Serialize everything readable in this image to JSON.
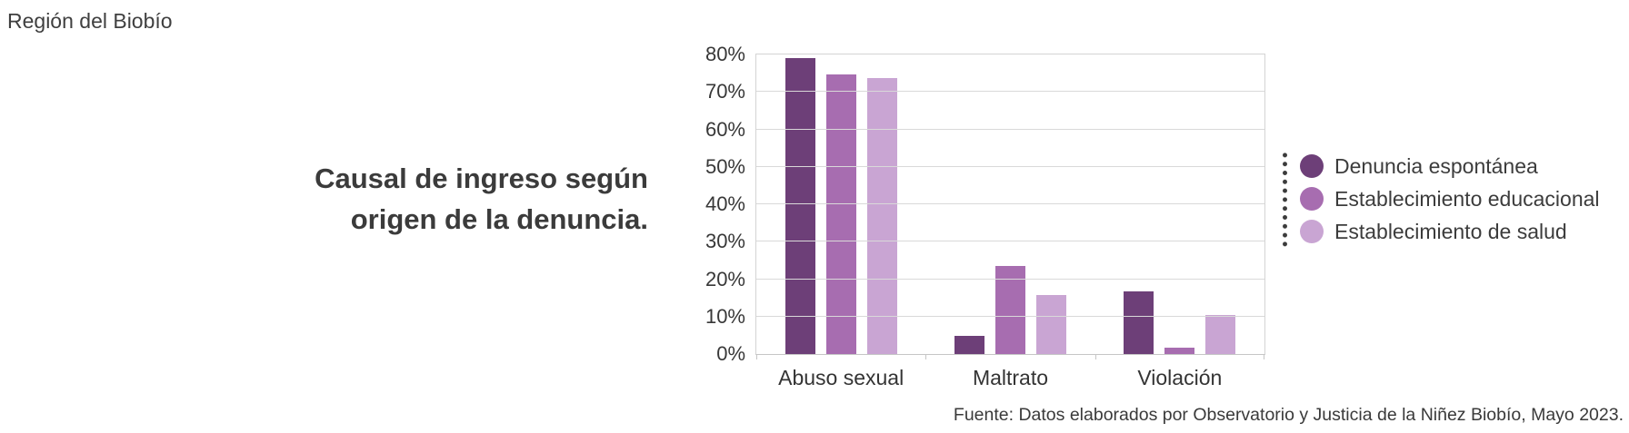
{
  "header": {
    "region": "Región del Biobío"
  },
  "title": {
    "line1": "Causal de ingreso según",
    "line2": "origen de la denuncia."
  },
  "footer": {
    "source": "Fuente: Datos elaborados por Observatorio y Justicia de la Niñez Biobío, Mayo 2023."
  },
  "colors": {
    "series_dark": "#6d3f78",
    "series_medium": "#a76db0",
    "series_light": "#c9a5d3",
    "gridline": "#d9d9d9",
    "text": "#3b3b3b"
  },
  "chart_data": {
    "type": "bar",
    "title": "Causal de ingreso según origen de la denuncia.",
    "xlabel": "",
    "ylabel": "",
    "unit": "%",
    "categories": [
      "Abuso sexual",
      "Maltrato",
      "Violación"
    ],
    "series": [
      {
        "name": "Denuncia espontánea",
        "color": "#6d3f78",
        "values": [
          79,
          4.8,
          16.8
        ]
      },
      {
        "name": "Establecimiento educacional",
        "color": "#a76db0",
        "values": [
          74.7,
          23.5,
          1.8
        ]
      },
      {
        "name": "Establecimiento de salud",
        "color": "#c9a5d3",
        "values": [
          73.8,
          15.8,
          10.4
        ]
      }
    ],
    "y_ticks": [
      "0%",
      "10%",
      "20%",
      "30%",
      "40%",
      "50%",
      "60%",
      "70%",
      "80%"
    ],
    "ylim": [
      0,
      80
    ],
    "grid": true,
    "legend_position": "right"
  }
}
